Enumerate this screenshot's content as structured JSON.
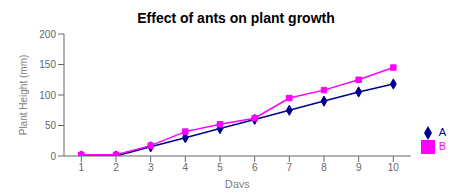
{
  "chart_data": {
    "type": "line",
    "title": "Effect of ants on plant growth",
    "x_label": "Days",
    "y_label": "Plant Height (mm)",
    "x": [
      1,
      2,
      3,
      4,
      5,
      6,
      7,
      8,
      9,
      10
    ],
    "series": [
      {
        "name": "A",
        "color": "#00008B",
        "marker": "diamond",
        "values": [
          0,
          0,
          15,
          30,
          45,
          60,
          75,
          90,
          105,
          118
        ]
      },
      {
        "name": "B",
        "color": "#FF00FF",
        "marker": "square",
        "values": [
          2,
          2,
          17,
          40,
          52,
          62,
          95,
          108,
          125,
          145
        ]
      }
    ],
    "xlim": [
      0.5,
      10.5
    ],
    "xticks": [
      1,
      2,
      3,
      4,
      5,
      6,
      7,
      8,
      9,
      10
    ],
    "ylim": [
      0,
      200
    ],
    "yticks": [
      0,
      50,
      100,
      150,
      200
    ],
    "grid": false,
    "legend": "lower right"
  }
}
